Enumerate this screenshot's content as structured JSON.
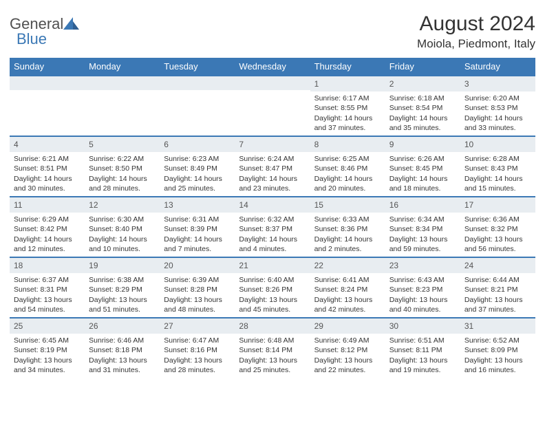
{
  "logo": {
    "part1": "General",
    "part2": "Blue",
    "triangle_color": "#3b78b5"
  },
  "title": "August 2024",
  "location": "Moiola, Piedmont, Italy",
  "header_bg": "#3b78b5",
  "header_fg": "#ffffff",
  "daynum_bg": "#e8edf1",
  "border_color": "#3b78b5",
  "text_color": "#333333",
  "days_of_week": [
    "Sunday",
    "Monday",
    "Tuesday",
    "Wednesday",
    "Thursday",
    "Friday",
    "Saturday"
  ],
  "weeks": [
    [
      null,
      null,
      null,
      null,
      {
        "d": "1",
        "sr": "Sunrise: 6:17 AM",
        "ss": "Sunset: 8:55 PM",
        "dl1": "Daylight: 14 hours",
        "dl2": "and 37 minutes."
      },
      {
        "d": "2",
        "sr": "Sunrise: 6:18 AM",
        "ss": "Sunset: 8:54 PM",
        "dl1": "Daylight: 14 hours",
        "dl2": "and 35 minutes."
      },
      {
        "d": "3",
        "sr": "Sunrise: 6:20 AM",
        "ss": "Sunset: 8:53 PM",
        "dl1": "Daylight: 14 hours",
        "dl2": "and 33 minutes."
      }
    ],
    [
      {
        "d": "4",
        "sr": "Sunrise: 6:21 AM",
        "ss": "Sunset: 8:51 PM",
        "dl1": "Daylight: 14 hours",
        "dl2": "and 30 minutes."
      },
      {
        "d": "5",
        "sr": "Sunrise: 6:22 AM",
        "ss": "Sunset: 8:50 PM",
        "dl1": "Daylight: 14 hours",
        "dl2": "and 28 minutes."
      },
      {
        "d": "6",
        "sr": "Sunrise: 6:23 AM",
        "ss": "Sunset: 8:49 PM",
        "dl1": "Daylight: 14 hours",
        "dl2": "and 25 minutes."
      },
      {
        "d": "7",
        "sr": "Sunrise: 6:24 AM",
        "ss": "Sunset: 8:47 PM",
        "dl1": "Daylight: 14 hours",
        "dl2": "and 23 minutes."
      },
      {
        "d": "8",
        "sr": "Sunrise: 6:25 AM",
        "ss": "Sunset: 8:46 PM",
        "dl1": "Daylight: 14 hours",
        "dl2": "and 20 minutes."
      },
      {
        "d": "9",
        "sr": "Sunrise: 6:26 AM",
        "ss": "Sunset: 8:45 PM",
        "dl1": "Daylight: 14 hours",
        "dl2": "and 18 minutes."
      },
      {
        "d": "10",
        "sr": "Sunrise: 6:28 AM",
        "ss": "Sunset: 8:43 PM",
        "dl1": "Daylight: 14 hours",
        "dl2": "and 15 minutes."
      }
    ],
    [
      {
        "d": "11",
        "sr": "Sunrise: 6:29 AM",
        "ss": "Sunset: 8:42 PM",
        "dl1": "Daylight: 14 hours",
        "dl2": "and 12 minutes."
      },
      {
        "d": "12",
        "sr": "Sunrise: 6:30 AM",
        "ss": "Sunset: 8:40 PM",
        "dl1": "Daylight: 14 hours",
        "dl2": "and 10 minutes."
      },
      {
        "d": "13",
        "sr": "Sunrise: 6:31 AM",
        "ss": "Sunset: 8:39 PM",
        "dl1": "Daylight: 14 hours",
        "dl2": "and 7 minutes."
      },
      {
        "d": "14",
        "sr": "Sunrise: 6:32 AM",
        "ss": "Sunset: 8:37 PM",
        "dl1": "Daylight: 14 hours",
        "dl2": "and 4 minutes."
      },
      {
        "d": "15",
        "sr": "Sunrise: 6:33 AM",
        "ss": "Sunset: 8:36 PM",
        "dl1": "Daylight: 14 hours",
        "dl2": "and 2 minutes."
      },
      {
        "d": "16",
        "sr": "Sunrise: 6:34 AM",
        "ss": "Sunset: 8:34 PM",
        "dl1": "Daylight: 13 hours",
        "dl2": "and 59 minutes."
      },
      {
        "d": "17",
        "sr": "Sunrise: 6:36 AM",
        "ss": "Sunset: 8:32 PM",
        "dl1": "Daylight: 13 hours",
        "dl2": "and 56 minutes."
      }
    ],
    [
      {
        "d": "18",
        "sr": "Sunrise: 6:37 AM",
        "ss": "Sunset: 8:31 PM",
        "dl1": "Daylight: 13 hours",
        "dl2": "and 54 minutes."
      },
      {
        "d": "19",
        "sr": "Sunrise: 6:38 AM",
        "ss": "Sunset: 8:29 PM",
        "dl1": "Daylight: 13 hours",
        "dl2": "and 51 minutes."
      },
      {
        "d": "20",
        "sr": "Sunrise: 6:39 AM",
        "ss": "Sunset: 8:28 PM",
        "dl1": "Daylight: 13 hours",
        "dl2": "and 48 minutes."
      },
      {
        "d": "21",
        "sr": "Sunrise: 6:40 AM",
        "ss": "Sunset: 8:26 PM",
        "dl1": "Daylight: 13 hours",
        "dl2": "and 45 minutes."
      },
      {
        "d": "22",
        "sr": "Sunrise: 6:41 AM",
        "ss": "Sunset: 8:24 PM",
        "dl1": "Daylight: 13 hours",
        "dl2": "and 42 minutes."
      },
      {
        "d": "23",
        "sr": "Sunrise: 6:43 AM",
        "ss": "Sunset: 8:23 PM",
        "dl1": "Daylight: 13 hours",
        "dl2": "and 40 minutes."
      },
      {
        "d": "24",
        "sr": "Sunrise: 6:44 AM",
        "ss": "Sunset: 8:21 PM",
        "dl1": "Daylight: 13 hours",
        "dl2": "and 37 minutes."
      }
    ],
    [
      {
        "d": "25",
        "sr": "Sunrise: 6:45 AM",
        "ss": "Sunset: 8:19 PM",
        "dl1": "Daylight: 13 hours",
        "dl2": "and 34 minutes."
      },
      {
        "d": "26",
        "sr": "Sunrise: 6:46 AM",
        "ss": "Sunset: 8:18 PM",
        "dl1": "Daylight: 13 hours",
        "dl2": "and 31 minutes."
      },
      {
        "d": "27",
        "sr": "Sunrise: 6:47 AM",
        "ss": "Sunset: 8:16 PM",
        "dl1": "Daylight: 13 hours",
        "dl2": "and 28 minutes."
      },
      {
        "d": "28",
        "sr": "Sunrise: 6:48 AM",
        "ss": "Sunset: 8:14 PM",
        "dl1": "Daylight: 13 hours",
        "dl2": "and 25 minutes."
      },
      {
        "d": "29",
        "sr": "Sunrise: 6:49 AM",
        "ss": "Sunset: 8:12 PM",
        "dl1": "Daylight: 13 hours",
        "dl2": "and 22 minutes."
      },
      {
        "d": "30",
        "sr": "Sunrise: 6:51 AM",
        "ss": "Sunset: 8:11 PM",
        "dl1": "Daylight: 13 hours",
        "dl2": "and 19 minutes."
      },
      {
        "d": "31",
        "sr": "Sunrise: 6:52 AM",
        "ss": "Sunset: 8:09 PM",
        "dl1": "Daylight: 13 hours",
        "dl2": "and 16 minutes."
      }
    ]
  ]
}
